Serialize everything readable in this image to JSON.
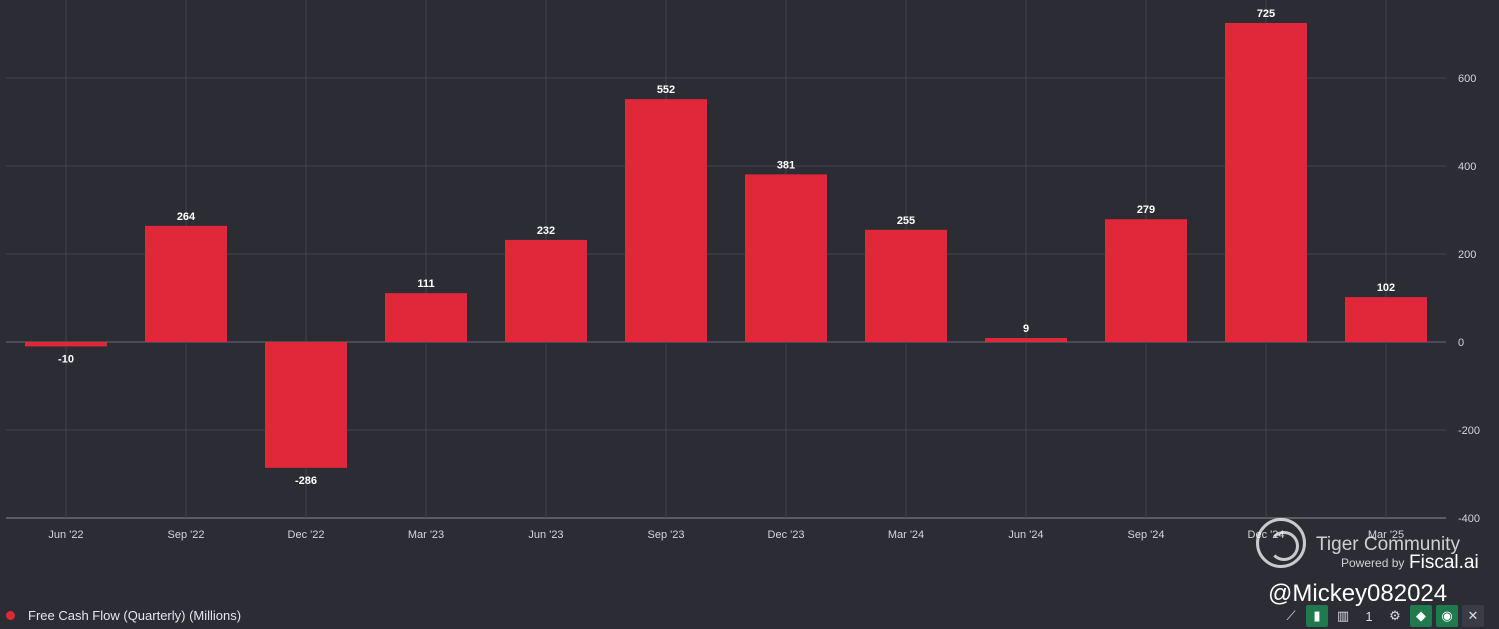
{
  "chart_data": {
    "type": "bar",
    "categories": [
      "Jun '22",
      "Sep '22",
      "Dec '22",
      "Mar '23",
      "Jun '23",
      "Sep '23",
      "Dec '23",
      "Mar '24",
      "Jun '24",
      "Sep '24",
      "Dec '24",
      "Mar '25"
    ],
    "series": [
      {
        "name": "Free Cash Flow (Quarterly) (Millions)",
        "values": [
          -10,
          264,
          -286,
          111,
          232,
          552,
          381,
          255,
          9,
          279,
          725,
          102
        ]
      }
    ],
    "ylim": [
      -400,
      725
    ],
    "yticks": [
      -400,
      -200,
      0,
      200,
      400,
      600
    ],
    "grid": true,
    "legend_position": "bottom-left",
    "bar_color": "#e0283a",
    "background": "#2b2c34"
  },
  "legend": {
    "label": "Free Cash Flow (Quarterly) (Millions)"
  },
  "watermark": {
    "title": "Tiger Community",
    "powered": "Powered by",
    "brand": "Fiscal.ai",
    "handle": "@Mickey082024"
  },
  "toolbar": [
    {
      "icon": "trend-lines-icon",
      "glyph": "⟋",
      "active": false
    },
    {
      "icon": "bar-chart-icon",
      "glyph": "▮",
      "active": true
    },
    {
      "icon": "column-chart-icon",
      "glyph": "▥",
      "active": false
    },
    {
      "icon": "ellipsis-icon",
      "glyph": "1",
      "active": false
    },
    {
      "icon": "gear-icon",
      "glyph": "⚙",
      "active": false
    },
    {
      "icon": "tag-icon",
      "glyph": "◆",
      "active": true
    },
    {
      "icon": "eye-icon",
      "glyph": "◉",
      "active": true
    },
    {
      "icon": "close-icon",
      "glyph": "✕",
      "active": false
    }
  ]
}
